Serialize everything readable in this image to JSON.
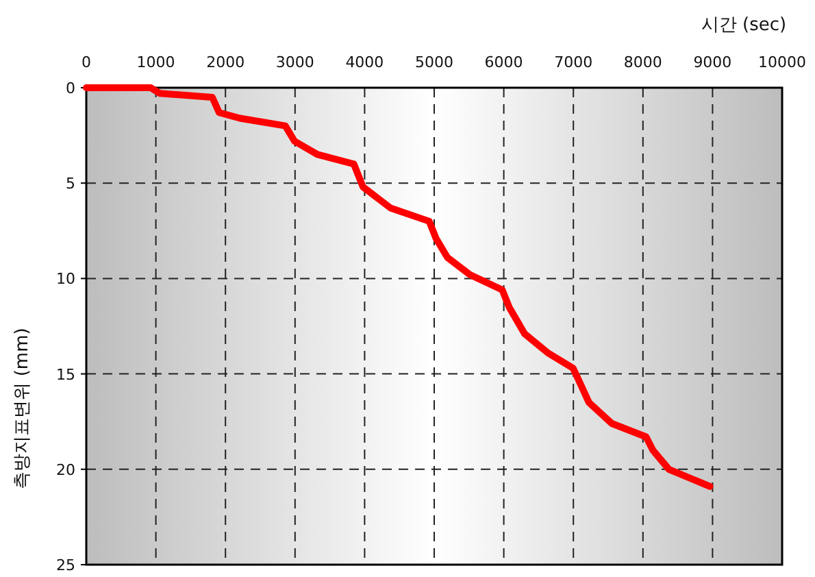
{
  "chart_data": {
    "type": "line",
    "xlabel": "시간 (sec)",
    "ylabel": "측방지표변위 (mm)",
    "xlim": [
      0,
      10000
    ],
    "ylim": [
      25,
      0
    ],
    "xticks": [
      0,
      1000,
      2000,
      3000,
      4000,
      5000,
      6000,
      7000,
      8000,
      9000,
      10000
    ],
    "yticks": [
      0,
      5,
      10,
      15,
      20,
      25
    ],
    "grid": true,
    "line_style": "solid",
    "series": [
      {
        "color": "#ff0000",
        "x": [
          0,
          925,
          1057,
          1811,
          1909,
          2205,
          2860,
          2992,
          3321,
          3845,
          3976,
          4370,
          4928,
          5026,
          5190,
          5512,
          5978,
          6077,
          6300,
          6634,
          6995,
          7060,
          7224,
          7553,
          8045,
          8143,
          8372,
          8963
        ],
        "values": [
          0,
          0,
          0.3,
          0.5,
          1.3,
          1.6,
          2.0,
          2.8,
          3.5,
          4.0,
          5.2,
          6.3,
          7.0,
          7.9,
          8.9,
          9.8,
          10.6,
          11.5,
          12.9,
          13.9,
          14.7,
          15.2,
          16.5,
          17.6,
          18.3,
          19.0,
          20.0,
          20.9
        ]
      }
    ]
  }
}
